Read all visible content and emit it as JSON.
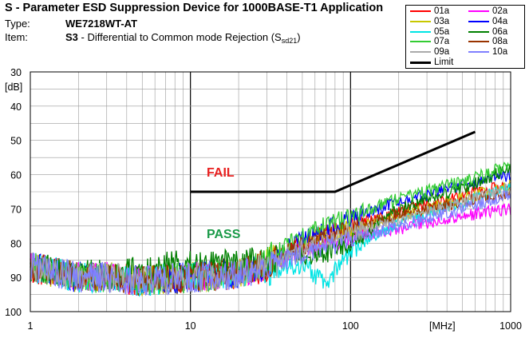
{
  "header": {
    "title": "S - Parameter ESD Suppression Device for 1000BASE-T1 Application",
    "type_label": "Type:",
    "type_value": "WE7218WT-AT",
    "item_label": "Item:",
    "item_code": "S3",
    "item_desc": " - Differential to Common mode Rejection (S",
    "item_sub": "sd21",
    "item_close": ")"
  },
  "chart_data": {
    "type": "line",
    "x_scale": "log",
    "xlim": [
      1,
      1000
    ],
    "ylim": [
      30,
      100
    ],
    "y_inverted": true,
    "x_ticks": [
      "1",
      "10",
      "100",
      "1000"
    ],
    "x_unit": "[MHz]",
    "y_ticks": [
      "30",
      "40",
      "50",
      "60",
      "70",
      "80",
      "90",
      "100"
    ],
    "y_unit": "[dB]",
    "grid": true,
    "legend_position": "top-right",
    "annotations": [
      {
        "text": "FAIL",
        "color": "#e8201f"
      },
      {
        "text": "PASS",
        "color": "#1a9a48"
      }
    ],
    "limit": {
      "name": "Limit",
      "color": "#000000",
      "points": [
        [
          10,
          65
        ],
        [
          80,
          65
        ],
        [
          600,
          47.5
        ]
      ]
    },
    "series": [
      {
        "name": "01a",
        "color": "#ff0000",
        "points": [
          [
            1,
            87
          ],
          [
            2,
            90
          ],
          [
            3,
            90
          ],
          [
            5,
            91
          ],
          [
            10,
            90
          ],
          [
            20,
            89
          ],
          [
            30,
            87
          ],
          [
            50,
            80
          ],
          [
            100,
            75
          ],
          [
            200,
            71
          ],
          [
            500,
            66
          ],
          [
            1000,
            63
          ]
        ]
      },
      {
        "name": "02a",
        "color": "#ff00ff",
        "points": [
          [
            1,
            87
          ],
          [
            2,
            90
          ],
          [
            3,
            90
          ],
          [
            5,
            91
          ],
          [
            10,
            90
          ],
          [
            20,
            89
          ],
          [
            30,
            87
          ],
          [
            50,
            82
          ],
          [
            100,
            78
          ],
          [
            200,
            76
          ],
          [
            300,
            74
          ],
          [
            500,
            72
          ],
          [
            1000,
            70
          ]
        ]
      },
      {
        "name": "03a",
        "color": "#c8c800",
        "points": [
          [
            1,
            87
          ],
          [
            2,
            90
          ],
          [
            3,
            90
          ],
          [
            5,
            91
          ],
          [
            10,
            90
          ],
          [
            20,
            89
          ],
          [
            30,
            86
          ],
          [
            50,
            80
          ],
          [
            100,
            76
          ],
          [
            200,
            72
          ],
          [
            500,
            67
          ],
          [
            1000,
            63
          ]
        ]
      },
      {
        "name": "04a",
        "color": "#0000ff",
        "points": [
          [
            1,
            87
          ],
          [
            2,
            90
          ],
          [
            3,
            90
          ],
          [
            5,
            91
          ],
          [
            10,
            90
          ],
          [
            20,
            89
          ],
          [
            30,
            86
          ],
          [
            50,
            79
          ],
          [
            100,
            73
          ],
          [
            200,
            68
          ],
          [
            500,
            63
          ],
          [
            1000,
            60
          ]
        ]
      },
      {
        "name": "05a",
        "color": "#00e5e5",
        "points": [
          [
            1,
            87
          ],
          [
            2,
            90
          ],
          [
            3,
            90
          ],
          [
            5,
            91
          ],
          [
            10,
            90
          ],
          [
            20,
            89
          ],
          [
            30,
            88
          ],
          [
            50,
            86
          ],
          [
            70,
            92
          ],
          [
            100,
            82
          ],
          [
            200,
            74
          ],
          [
            500,
            68
          ],
          [
            1000,
            64
          ]
        ]
      },
      {
        "name": "06a",
        "color": "#008000",
        "points": [
          [
            1,
            87
          ],
          [
            2,
            89
          ],
          [
            3,
            89
          ],
          [
            5,
            88
          ],
          [
            10,
            86
          ],
          [
            20,
            86
          ],
          [
            30,
            85
          ],
          [
            50,
            84
          ],
          [
            70,
            83
          ],
          [
            100,
            80
          ],
          [
            200,
            70
          ],
          [
            500,
            64
          ],
          [
            1000,
            58
          ]
        ]
      },
      {
        "name": "07a",
        "color": "#33cc33",
        "points": [
          [
            1,
            87
          ],
          [
            2,
            90
          ],
          [
            3,
            90
          ],
          [
            5,
            91
          ],
          [
            10,
            90
          ],
          [
            20,
            89
          ],
          [
            30,
            85
          ],
          [
            50,
            78
          ],
          [
            100,
            72
          ],
          [
            200,
            67
          ],
          [
            500,
            62
          ],
          [
            1000,
            57
          ]
        ]
      },
      {
        "name": "08a",
        "color": "#993300",
        "points": [
          [
            1,
            87
          ],
          [
            2,
            90
          ],
          [
            3,
            90
          ],
          [
            5,
            91
          ],
          [
            10,
            90
          ],
          [
            20,
            89
          ],
          [
            30,
            86
          ],
          [
            50,
            81
          ],
          [
            100,
            76
          ],
          [
            200,
            72
          ],
          [
            500,
            68
          ],
          [
            1000,
            65
          ]
        ]
      },
      {
        "name": "09a",
        "color": "#aaaaaa",
        "points": [
          [
            1,
            87
          ],
          [
            2,
            90
          ],
          [
            3,
            90
          ],
          [
            5,
            91
          ],
          [
            10,
            90
          ],
          [
            20,
            89
          ],
          [
            30,
            87
          ],
          [
            50,
            82
          ],
          [
            100,
            77
          ],
          [
            200,
            73
          ],
          [
            500,
            68
          ],
          [
            1000,
            64
          ]
        ]
      },
      {
        "name": "10a",
        "color": "#8080ff",
        "points": [
          [
            1,
            87
          ],
          [
            2,
            90
          ],
          [
            3,
            90
          ],
          [
            5,
            91
          ],
          [
            10,
            90
          ],
          [
            20,
            89
          ],
          [
            30,
            87
          ],
          [
            50,
            83
          ],
          [
            100,
            79
          ],
          [
            200,
            75
          ],
          [
            500,
            70
          ],
          [
            1000,
            66
          ]
        ]
      }
    ]
  }
}
